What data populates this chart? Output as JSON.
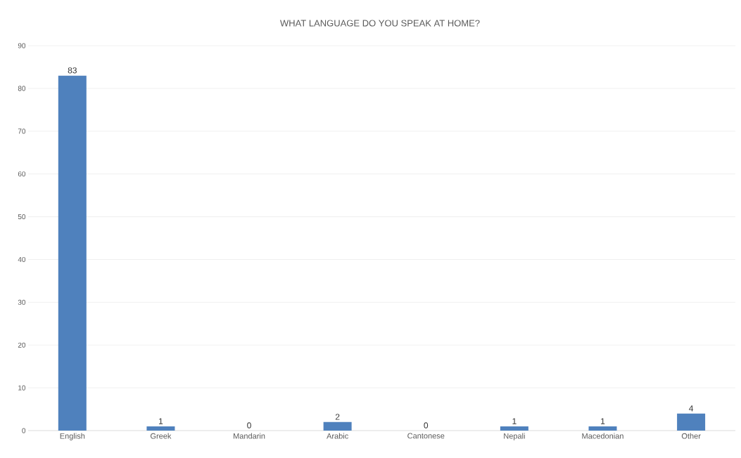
{
  "chart_data": {
    "type": "bar",
    "title": "WHAT LANGUAGE DO YOU SPEAK AT HOME?",
    "categories": [
      "English",
      "Greek",
      "Mandarin",
      "Arabic",
      "Cantonese",
      "Nepali",
      "Macedonian",
      "Other"
    ],
    "values": [
      83,
      1,
      0,
      2,
      0,
      1,
      1,
      4
    ],
    "color": "#4f81bd",
    "ylim": [
      0,
      90
    ],
    "yticks": [
      0,
      10,
      20,
      30,
      40,
      50,
      60,
      70,
      80,
      90
    ],
    "grid": "y",
    "data_labels": true
  }
}
